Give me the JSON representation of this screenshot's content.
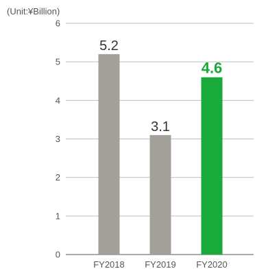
{
  "chart_data": {
    "type": "bar",
    "title": "",
    "unit_label": "(Unit:¥Billion)",
    "categories": [
      "FY2018",
      "FY2019",
      "FY2020"
    ],
    "values": [
      5.2,
      3.1,
      4.6
    ],
    "data_labels": [
      "5.2",
      "3.1",
      "4.6"
    ],
    "highlight_index": 2,
    "ylim": [
      0,
      6
    ],
    "yticks": [
      0,
      1,
      2,
      3,
      4,
      5,
      6
    ],
    "grid": true,
    "xlabel": "",
    "ylabel": ""
  },
  "colors": {
    "bar": "#a39f99",
    "highlight": "#1aaa3c",
    "grid": "#bfbfbf",
    "axis": "#555555"
  }
}
